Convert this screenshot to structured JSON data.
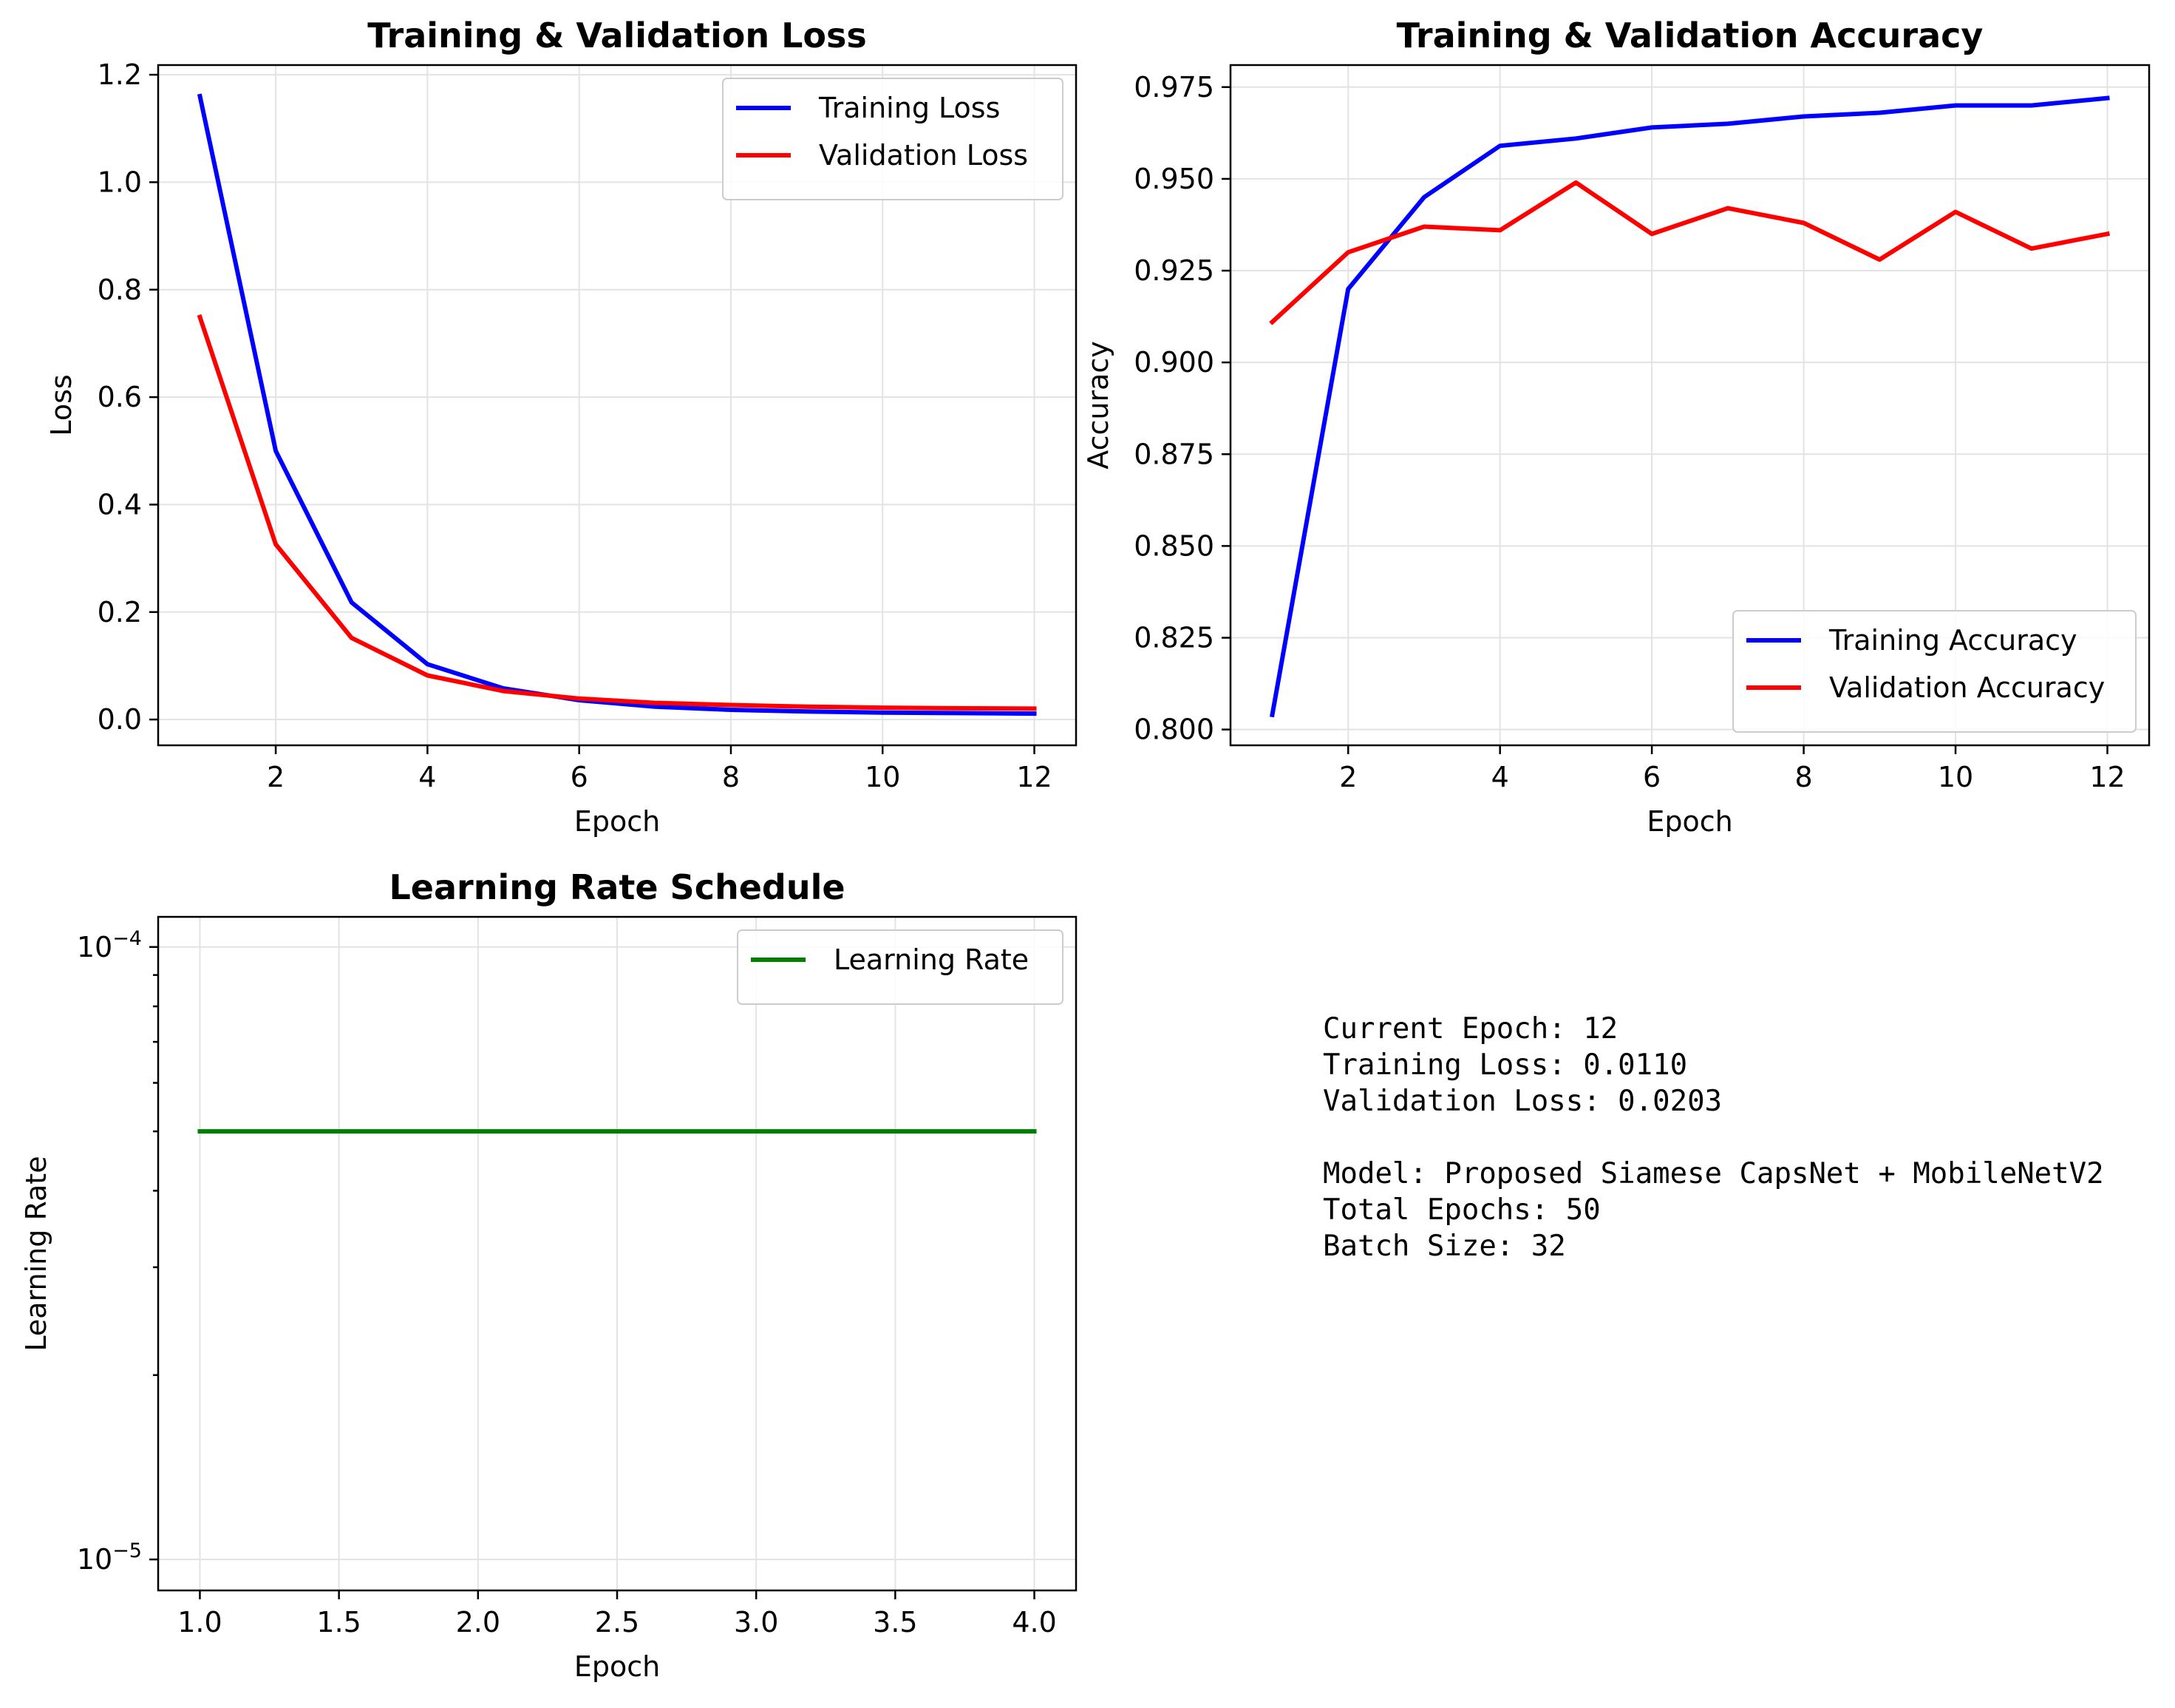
{
  "chart_data": [
    {
      "type": "line",
      "title": "Training & Validation Loss",
      "xlabel": "Epoch",
      "ylabel": "Loss",
      "xlim": [
        0.45,
        12.55
      ],
      "ylim": [
        -0.048,
        1.218
      ],
      "x_ticks": [
        2,
        4,
        6,
        8,
        10,
        12
      ],
      "x_tick_labels": [
        "2",
        "4",
        "6",
        "8",
        "10",
        "12"
      ],
      "y_ticks": [
        0.0,
        0.2,
        0.4,
        0.6,
        0.8,
        1.0,
        1.2
      ],
      "y_tick_labels": [
        "0.0",
        "0.2",
        "0.4",
        "0.6",
        "0.8",
        "1.0",
        "1.2"
      ],
      "grid": true,
      "legend_position": "top-right",
      "x": [
        1,
        2,
        3,
        4,
        5,
        6,
        7,
        8,
        9,
        10,
        11,
        12
      ],
      "series": [
        {
          "name": "Training Loss",
          "color": "#0000ff",
          "values": [
            1.16,
            0.5,
            0.218,
            0.103,
            0.058,
            0.036,
            0.024,
            0.018,
            0.015,
            0.013,
            0.012,
            0.011
          ]
        },
        {
          "name": "Validation Loss",
          "color": "#ff0000",
          "values": [
            0.749,
            0.326,
            0.152,
            0.082,
            0.053,
            0.039,
            0.031,
            0.027,
            0.024,
            0.022,
            0.021,
            0.0203
          ]
        }
      ]
    },
    {
      "type": "line",
      "title": "Training & Validation Accuracy",
      "xlabel": "Epoch",
      "ylabel": "Accuracy",
      "xlim": [
        0.45,
        12.55
      ],
      "ylim": [
        0.7957,
        0.981
      ],
      "x_ticks": [
        2,
        4,
        6,
        8,
        10,
        12
      ],
      "x_tick_labels": [
        "2",
        "4",
        "6",
        "8",
        "10",
        "12"
      ],
      "y_ticks": [
        0.8,
        0.825,
        0.85,
        0.875,
        0.9,
        0.925,
        0.95,
        0.975
      ],
      "y_tick_labels": [
        "0.800",
        "0.825",
        "0.850",
        "0.875",
        "0.900",
        "0.925",
        "0.950",
        "0.975"
      ],
      "grid": true,
      "legend_position": "bottom-right",
      "x": [
        1,
        2,
        3,
        4,
        5,
        6,
        7,
        8,
        9,
        10,
        11,
        12
      ],
      "series": [
        {
          "name": "Training Accuracy",
          "color": "#0000ff",
          "values": [
            0.804,
            0.92,
            0.945,
            0.959,
            0.961,
            0.964,
            0.965,
            0.967,
            0.968,
            0.97,
            0.97,
            0.972
          ]
        },
        {
          "name": "Validation Accuracy",
          "color": "#ff0000",
          "values": [
            0.911,
            0.93,
            0.937,
            0.936,
            0.949,
            0.935,
            0.942,
            0.938,
            0.928,
            0.941,
            0.931,
            0.935
          ]
        }
      ]
    },
    {
      "type": "line",
      "title": "Learning Rate Schedule",
      "xlabel": "Epoch",
      "ylabel": "Learning Rate",
      "yscale": "log",
      "xlim": [
        0.85,
        4.15
      ],
      "ylim": [
        8.9e-06,
        0.000112
      ],
      "x_ticks": [
        1.0,
        1.5,
        2.0,
        2.5,
        3.0,
        3.5,
        4.0
      ],
      "x_tick_labels": [
        "1.0",
        "1.5",
        "2.0",
        "2.5",
        "3.0",
        "3.5",
        "4.0"
      ],
      "y_major_ticks": [
        {
          "value": 1e-05,
          "base": "10",
          "exp": "−5"
        },
        {
          "value": 0.0001,
          "base": "10",
          "exp": "−4"
        }
      ],
      "y_minor_ticks": [
        2e-05,
        3e-05,
        4e-05,
        5e-05,
        6e-05,
        7e-05,
        8e-05,
        9e-05
      ],
      "grid": true,
      "legend_position": "top-right",
      "x": [
        1,
        2,
        3,
        4
      ],
      "series": [
        {
          "name": "Learning Rate",
          "color": "#008000",
          "values": [
            5e-05,
            5e-05,
            5e-05,
            5e-05
          ]
        }
      ]
    }
  ],
  "info_panel": {
    "lines": [
      "Current Epoch: 12",
      "Training Loss: 0.0110",
      "Validation Loss: 0.0203",
      "",
      "Model: Proposed Siamese CapsNet + MobileNetV2",
      "Total Epochs: 50",
      "Batch Size: 32"
    ]
  }
}
